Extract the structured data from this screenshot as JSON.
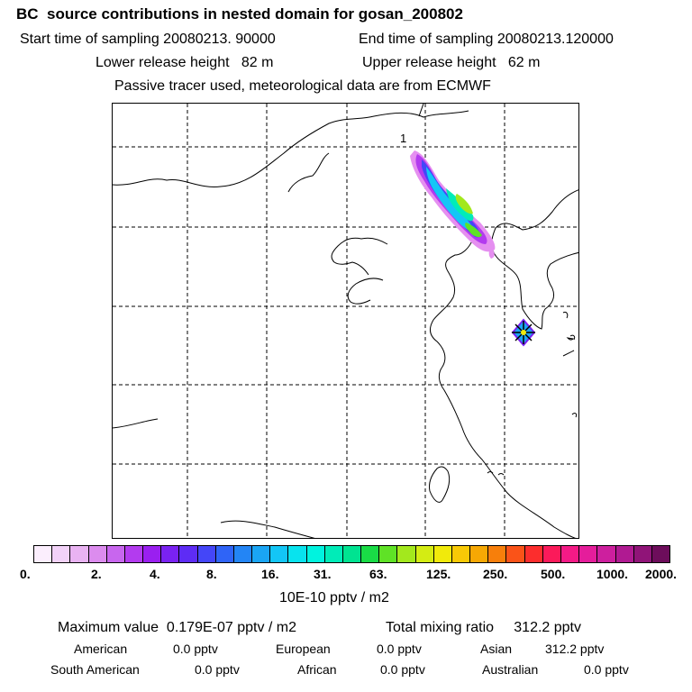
{
  "header": {
    "title": "BC  source contributions in nested domain for gosan_200802",
    "start_time": "Start time of sampling 20080213. 90000",
    "end_time": "End time of sampling 20080213.120000",
    "lower_height": "Lower release height   82 m",
    "upper_height": "Upper release height   62 m",
    "tracer_note": "Passive tracer used, meteorological data are from ECMWF"
  },
  "map": {
    "release_label": "1",
    "receptor_marker": "receptor-star-icon"
  },
  "colorbar": {
    "colors": [
      "#fbeefd",
      "#f2d2f8",
      "#e9b3f2",
      "#dc8cee",
      "#c866ee",
      "#b33bef",
      "#9a1ff0",
      "#7a22f2",
      "#5e2cf5",
      "#4446f8",
      "#2f64f7",
      "#2385f5",
      "#1aa5f4",
      "#13c6f6",
      "#08e3ee",
      "#00f3df",
      "#00ecb8",
      "#00e391",
      "#19dc46",
      "#5fe226",
      "#a3e81d",
      "#d4ec13",
      "#f1ea0b",
      "#f8c906",
      "#f6a804",
      "#f77f0b",
      "#fa5318",
      "#fc2d2d",
      "#fb1a5a",
      "#f41a86",
      "#e51d9b",
      "#cd1f9e",
      "#b01a92",
      "#901478",
      "#6d0d5b"
    ],
    "tick_labels": [
      "0.",
      "2.",
      "4.",
      "8.",
      "16.",
      "31.",
      "63.",
      "125.",
      "250.",
      "500.",
      "1000.",
      "2000."
    ],
    "units": "10E-10 pptv / m2"
  },
  "summary": {
    "max_value": "Maximum value  0.179E-07 pptv / m2",
    "total_mixing": "Total mixing ratio     312.2 pptv",
    "american_label": "American",
    "american_value": "0.0 pptv",
    "european_label": "European",
    "european_value": "0.0 pptv",
    "asian_label": "Asian",
    "asian_value": "312.2 pptv",
    "south_american_label": "South American",
    "south_american_value": "0.0 pptv",
    "african_label": "African",
    "african_value": "0.0 pptv",
    "australian_label": "Australian",
    "australian_value": "0.0 pptv"
  }
}
